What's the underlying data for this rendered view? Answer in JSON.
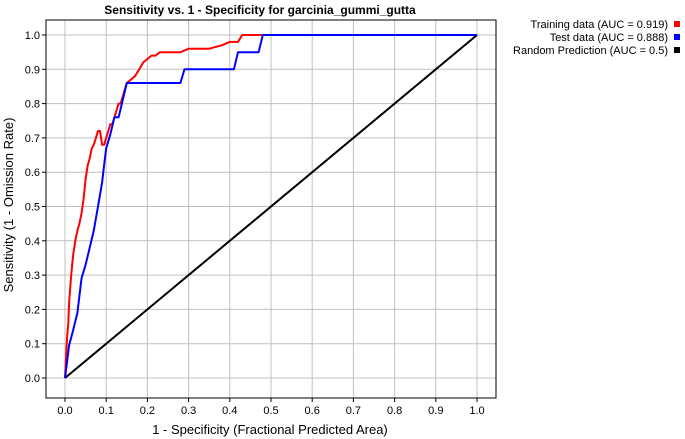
{
  "chart_data": {
    "type": "line",
    "title": "Sensitivity vs. 1 - Specificity for garcinia_gummi_gutta",
    "xlabel": "1 - Specificity  (Fractional Predicted Area)",
    "ylabel": "Sensitivity  (1 - Omission Rate)",
    "xlim": [
      0,
      1
    ],
    "ylim": [
      0,
      1
    ],
    "xticks": [
      "0.0",
      "0.1",
      "0.2",
      "0.3",
      "0.4",
      "0.5",
      "0.6",
      "0.7",
      "0.8",
      "0.9",
      "1.0"
    ],
    "yticks": [
      "0.0",
      "0.1",
      "0.2",
      "0.3",
      "0.4",
      "0.5",
      "0.6",
      "0.7",
      "0.8",
      "0.9",
      "1.0"
    ],
    "grid": true,
    "legend_position": "outside-top-right",
    "series": [
      {
        "name": "Training data (AUC = 0.919)",
        "color": "#ff0000",
        "x": [
          0,
          0.005,
          0.008,
          0.01,
          0.015,
          0.02,
          0.025,
          0.03,
          0.035,
          0.04,
          0.045,
          0.05,
          0.055,
          0.06,
          0.065,
          0.07,
          0.075,
          0.08,
          0.085,
          0.09,
          0.095,
          0.1,
          0.105,
          0.11,
          0.115,
          0.12,
          0.125,
          0.13,
          0.135,
          0.14,
          0.145,
          0.15,
          0.16,
          0.17,
          0.175,
          0.18,
          0.19,
          0.2,
          0.21,
          0.22,
          0.23,
          0.24,
          0.26,
          0.28,
          0.3,
          0.32,
          0.35,
          0.38,
          0.4,
          0.42,
          0.43,
          0.5,
          0.6,
          0.7,
          0.8,
          0.9,
          1.0
        ],
        "y": [
          0,
          0.12,
          0.16,
          0.22,
          0.3,
          0.36,
          0.4,
          0.43,
          0.45,
          0.48,
          0.52,
          0.58,
          0.62,
          0.64,
          0.67,
          0.68,
          0.7,
          0.72,
          0.72,
          0.68,
          0.68,
          0.7,
          0.72,
          0.74,
          0.74,
          0.76,
          0.78,
          0.8,
          0.8,
          0.82,
          0.84,
          0.86,
          0.87,
          0.88,
          0.89,
          0.9,
          0.92,
          0.93,
          0.94,
          0.94,
          0.95,
          0.95,
          0.95,
          0.95,
          0.96,
          0.96,
          0.96,
          0.97,
          0.98,
          0.98,
          1.0,
          1.0,
          1.0,
          1.0,
          1.0,
          1.0,
          1.0
        ]
      },
      {
        "name": "Test data (AUC = 0.888)",
        "color": "#0000ff",
        "x": [
          0,
          0.01,
          0.02,
          0.03,
          0.04,
          0.05,
          0.06,
          0.07,
          0.08,
          0.09,
          0.095,
          0.1,
          0.11,
          0.12,
          0.13,
          0.14,
          0.15,
          0.16,
          0.17,
          0.28,
          0.29,
          0.41,
          0.42,
          0.47,
          0.48,
          0.6,
          0.8,
          1.0
        ],
        "y": [
          0,
          0.095,
          0.14,
          0.19,
          0.29,
          0.33,
          0.38,
          0.43,
          0.5,
          0.57,
          0.62,
          0.67,
          0.71,
          0.76,
          0.76,
          0.81,
          0.86,
          0.86,
          0.86,
          0.86,
          0.9,
          0.9,
          0.95,
          0.95,
          1.0,
          1.0,
          1.0,
          1.0
        ]
      },
      {
        "name": "Random Prediction (AUC = 0.5)",
        "color": "#000000",
        "x": [
          0,
          1
        ],
        "y": [
          0,
          1
        ]
      }
    ]
  }
}
